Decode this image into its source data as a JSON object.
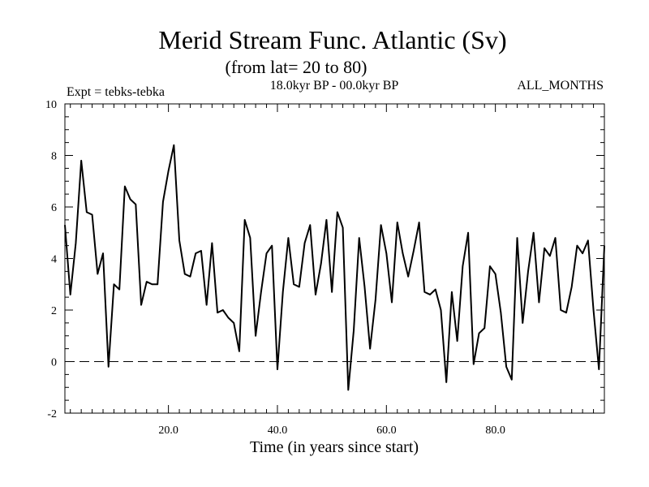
{
  "chart_data": {
    "type": "line",
    "title": "Merid Stream Func. Atlantic (Sv)",
    "subtitle": "(from lat= 20 to 80)",
    "info_left": "Expt = tebks-tebka",
    "info_center": "18.0kyr BP - 00.0kyr BP",
    "info_right": "ALL_MONTHS",
    "xlabel": "Time (in years since start)",
    "ylabel": "",
    "xlim": [
      1,
      100
    ],
    "ylim": [
      -2,
      10
    ],
    "xticks": [
      20,
      40,
      60,
      80
    ],
    "xtick_labels": [
      "20.0",
      "40.0",
      "60.0",
      "80.0"
    ],
    "yticks": [
      -2,
      0,
      2,
      4,
      6,
      8,
      10
    ],
    "ytick_labels": [
      "-2",
      "0",
      "2",
      "4",
      "6",
      "8",
      "10"
    ],
    "reference_line": {
      "y": 0,
      "style": "dashed"
    },
    "series": [
      {
        "name": "tebks-tebka",
        "x": [
          1,
          2,
          3,
          4,
          5,
          6,
          7,
          8,
          9,
          10,
          11,
          12,
          13,
          14,
          15,
          16,
          17,
          18,
          19,
          20,
          21,
          22,
          23,
          24,
          25,
          26,
          27,
          28,
          29,
          30,
          31,
          32,
          33,
          34,
          35,
          36,
          37,
          38,
          39,
          40,
          41,
          42,
          43,
          44,
          45,
          46,
          47,
          48,
          49,
          50,
          51,
          52,
          53,
          54,
          55,
          56,
          57,
          58,
          59,
          60,
          61,
          62,
          63,
          64,
          65,
          66,
          67,
          68,
          69,
          70,
          71,
          72,
          73,
          74,
          75,
          76,
          77,
          78,
          79,
          80,
          81,
          82,
          83,
          84,
          85,
          86,
          87,
          88,
          89,
          90,
          91,
          92,
          93,
          94,
          95,
          96,
          97,
          98,
          99,
          100
        ],
        "values": [
          5.3,
          2.6,
          4.6,
          7.8,
          5.8,
          5.7,
          3.4,
          4.2,
          -0.2,
          3.0,
          2.8,
          6.8,
          6.3,
          6.1,
          2.2,
          3.1,
          3.0,
          3.0,
          6.2,
          7.4,
          8.4,
          4.7,
          3.4,
          3.3,
          4.2,
          4.3,
          2.2,
          4.6,
          1.9,
          2.0,
          1.7,
          1.5,
          0.4,
          5.5,
          4.8,
          1.0,
          2.7,
          4.2,
          4.5,
          -0.3,
          2.7,
          4.8,
          3.0,
          2.9,
          4.6,
          5.3,
          2.6,
          3.8,
          5.5,
          2.7,
          5.8,
          5.2,
          -1.1,
          1.2,
          4.8,
          2.9,
          0.5,
          2.4,
          5.3,
          4.2,
          2.3,
          5.4,
          4.2,
          3.3,
          4.3,
          5.4,
          2.7,
          2.6,
          2.8,
          2.0,
          -0.8,
          2.7,
          0.8,
          3.7,
          5.0,
          -0.1,
          1.1,
          1.3,
          3.7,
          3.4,
          1.9,
          -0.2,
          -0.7,
          4.8,
          1.5,
          3.5,
          5.0,
          2.3,
          4.4,
          4.1,
          4.8,
          2.0,
          1.9,
          2.9,
          4.5,
          4.2,
          4.7,
          2.0,
          -0.3,
          4.5
        ]
      }
    ]
  }
}
